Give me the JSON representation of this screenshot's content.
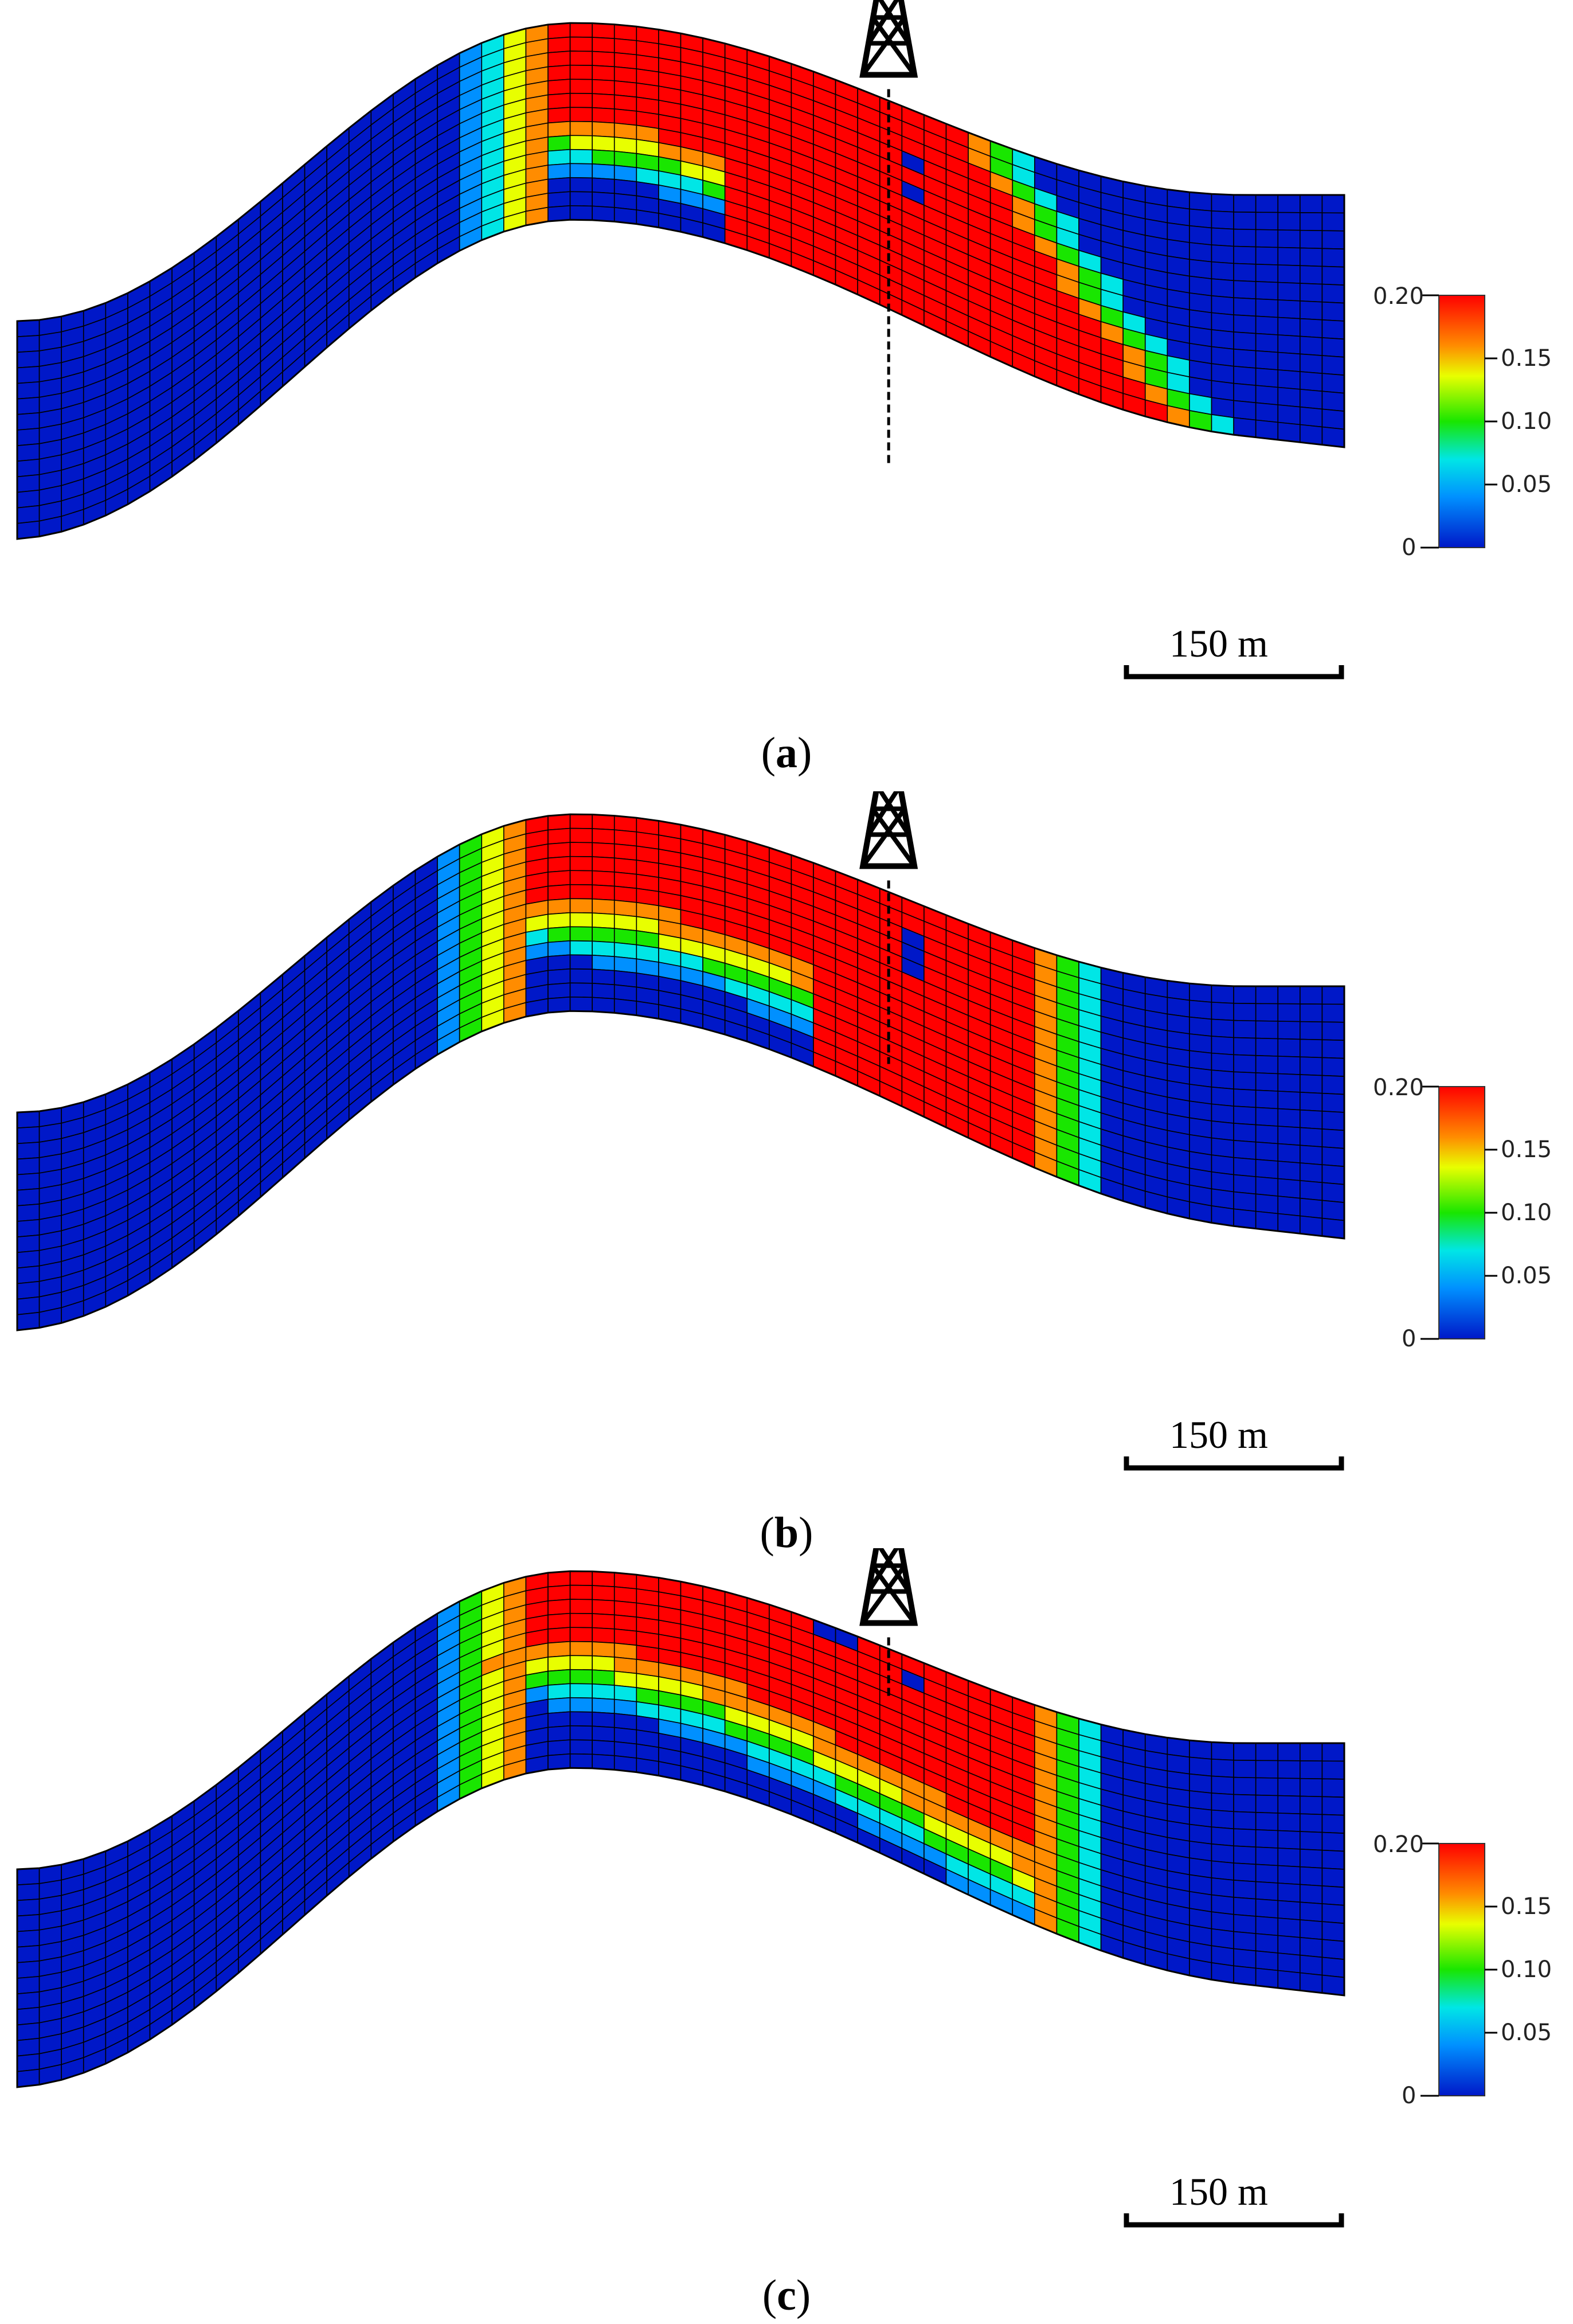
{
  "panels": [
    {
      "id": "a",
      "caption_letter": "a",
      "colorbar": {
        "top_label": "0.20",
        "bottom_label": "0",
        "tick_labels": [
          "0.15",
          "0.10",
          "0.05"
        ]
      },
      "scale_bar_label": "150 m"
    },
    {
      "id": "b",
      "caption_letter": "b",
      "colorbar": {
        "top_label": "0.20",
        "bottom_label": "0",
        "tick_labels": [
          "0.15",
          "0.10",
          "0.05"
        ]
      },
      "scale_bar_label": "150 m"
    },
    {
      "id": "c",
      "caption_letter": "c",
      "colorbar": {
        "top_label": "0.20",
        "bottom_label": "0",
        "tick_labels": [
          "0.15",
          "0.10",
          "0.05"
        ]
      },
      "scale_bar_label": "150 m"
    }
  ],
  "colors": {
    "high": "#ff0000",
    "orange": "#ff8c00",
    "yellow": "#e8ff00",
    "green": "#19e600",
    "cyan": "#00e6e6",
    "blue_mid": "#0090ff",
    "low": "#0018c8",
    "grid_line": "#000000"
  },
  "icons": [
    "drilling-rig-icon"
  ]
}
